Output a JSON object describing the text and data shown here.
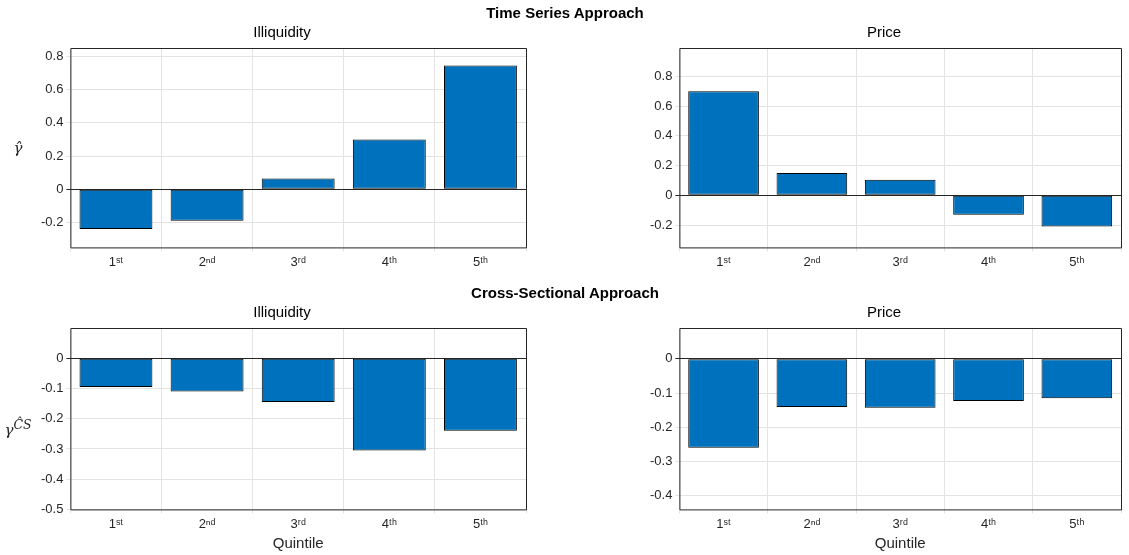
{
  "chart_data": [
    {
      "type": "bar",
      "title": "Illiquidity",
      "ylabel": "γ̂",
      "annotations": [
        "Time Series Approach"
      ],
      "categories": [
        "1ˢᵗ",
        "2ⁿᵈ",
        "3ʳᵈ",
        "4ᵗʰ",
        "5ᵗʰ"
      ],
      "values": [
        -0.24,
        -0.19,
        0.065,
        0.3,
        0.745
      ],
      "color": "#0072bd",
      "ylim": [
        -0.35,
        0.85
      ],
      "yticks": [
        -0.2,
        0,
        0.2,
        0.4,
        0.6,
        0.8
      ],
      "grid": true
    },
    {
      "type": "bar",
      "title": "Price",
      "categories": [
        "1ˢᵗ",
        "2ⁿᵈ",
        "3ʳᵈ",
        "4ᵗʰ",
        "5ᵗʰ"
      ],
      "values": [
        0.7,
        0.15,
        0.105,
        -0.13,
        -0.21
      ],
      "color": "#0072bd",
      "ylim": [
        -0.35,
        0.99
      ],
      "yticks": [
        -0.2,
        0,
        0.2,
        0.4,
        0.6,
        0.8
      ],
      "grid": true
    },
    {
      "type": "bar",
      "title": "Illiquidity",
      "ylabel": "γ$^{ĈS}$",
      "xlabel": "Quintile",
      "annotations": [
        "Cross-Sectional  Approach"
      ],
      "categories": [
        "1ˢᵗ",
        "2ⁿᵈ",
        "3ʳᵈ",
        "4ᵗʰ",
        "5ᵗʰ"
      ],
      "values": [
        -0.095,
        -0.11,
        -0.145,
        -0.305,
        -0.24
      ],
      "color": "#0072bd",
      "ylim": [
        -0.5,
        0.1
      ],
      "yticks": [
        -0.5,
        -0.4,
        -0.3,
        -0.2,
        -0.1,
        0
      ],
      "grid": true
    },
    {
      "type": "bar",
      "title": "Price",
      "xlabel": "Quintile",
      "categories": [
        "1ˢᵗ",
        "2ⁿᵈ",
        "3ʳᵈ",
        "4ᵗʰ",
        "5ᵗʰ"
      ],
      "values": [
        -0.26,
        -0.141,
        -0.143,
        -0.123,
        -0.115
      ],
      "color": "#0072bd",
      "ylim": [
        -0.44,
        0.09
      ],
      "yticks": [
        -0.4,
        -0.3,
        -0.2,
        -0.1,
        0
      ],
      "grid": true
    }
  ]
}
